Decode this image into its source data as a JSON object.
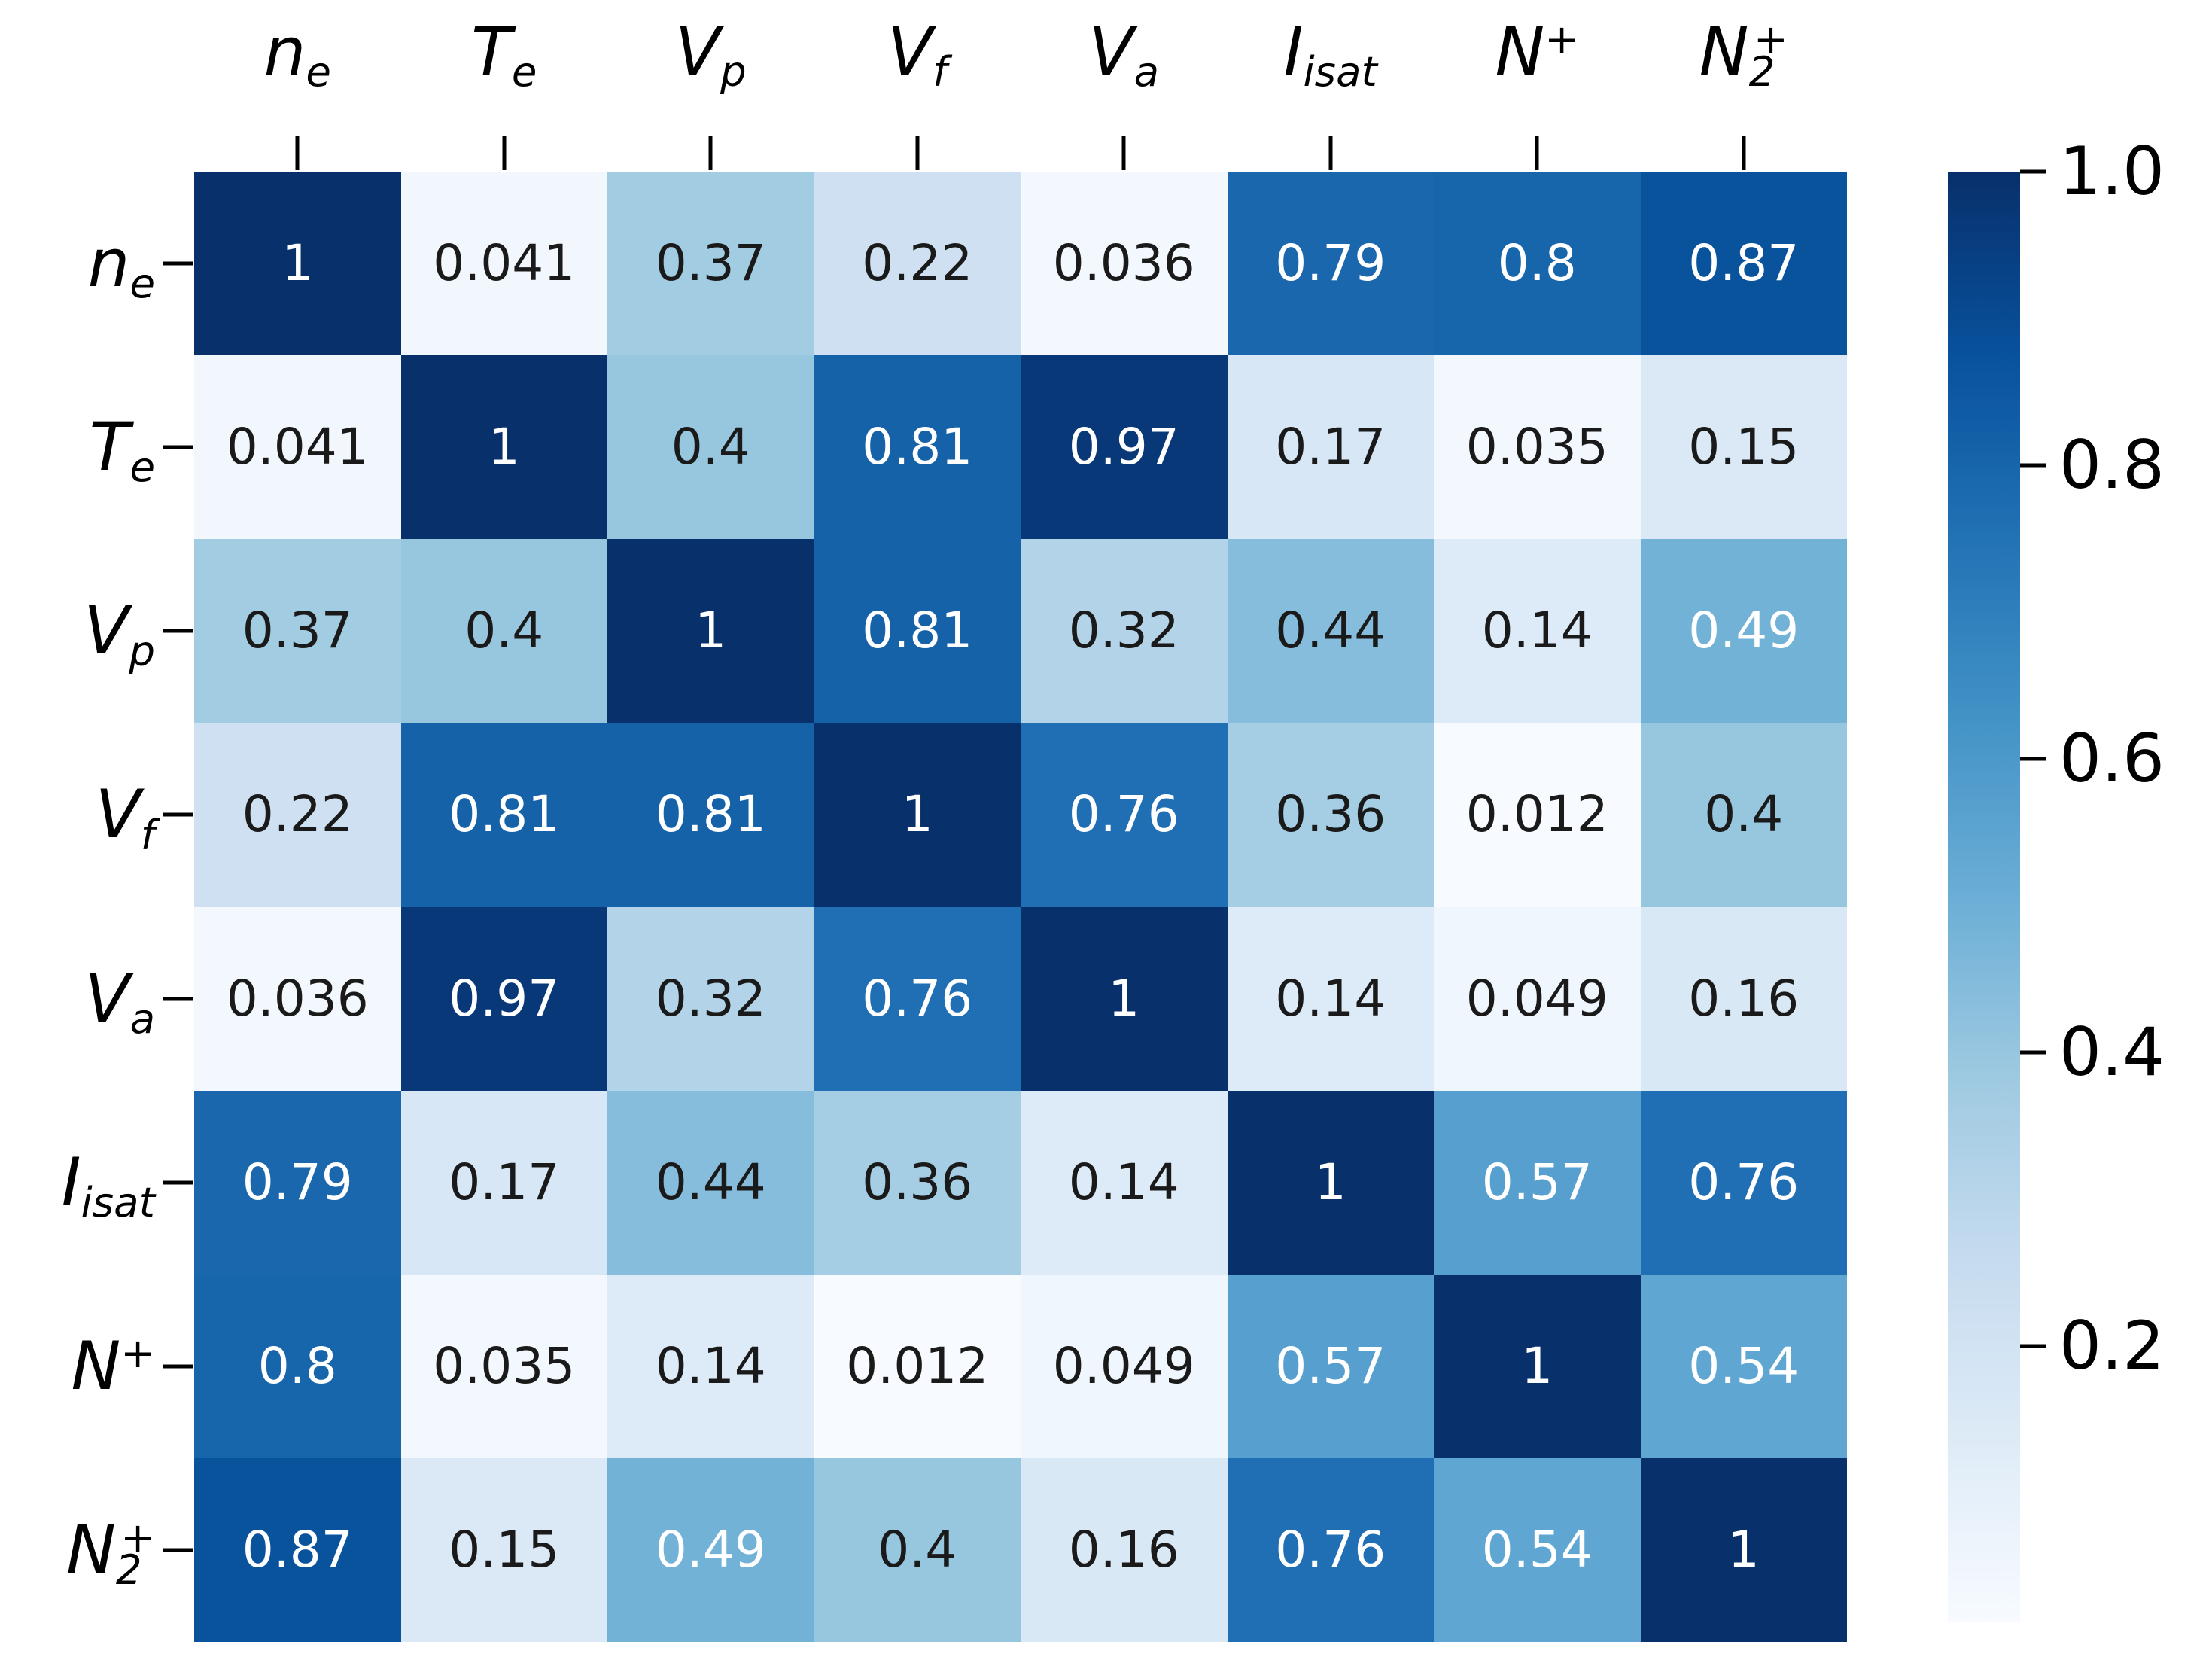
{
  "chart_data": {
    "type": "heatmap",
    "title": "",
    "subtitle": "",
    "description": "Correlation matrix heatmap of plasma diagnostic variables, Blues colormap, annotated values, colorbar on right",
    "variables_plain": [
      "n_e",
      "T_e",
      "V_p",
      "V_f",
      "V_a",
      "I_isat",
      "N+",
      "N2+"
    ],
    "label_parts": [
      {
        "base": "n",
        "sub": "e",
        "sup": ""
      },
      {
        "base": "T",
        "sub": "e",
        "sup": ""
      },
      {
        "base": "V",
        "sub": "p",
        "sup": ""
      },
      {
        "base": "V",
        "sub": "f",
        "sup": ""
      },
      {
        "base": "V",
        "sub": "a",
        "sup": ""
      },
      {
        "base": "I",
        "sub": "isat",
        "sup": ""
      },
      {
        "base": "N",
        "sub": "",
        "sup": "+"
      },
      {
        "base": "N",
        "sub": "2",
        "sup": "+"
      }
    ],
    "matrix_values": [
      [
        1,
        0.041,
        0.37,
        0.22,
        0.036,
        0.79,
        0.8,
        0.87
      ],
      [
        0.041,
        1,
        0.4,
        0.81,
        0.97,
        0.17,
        0.035,
        0.15
      ],
      [
        0.37,
        0.4,
        1,
        0.81,
        0.32,
        0.44,
        0.14,
        0.49
      ],
      [
        0.22,
        0.81,
        0.81,
        1,
        0.76,
        0.36,
        0.012,
        0.4
      ],
      [
        0.036,
        0.97,
        0.32,
        0.76,
        1,
        0.14,
        0.049,
        0.16
      ],
      [
        0.79,
        0.17,
        0.44,
        0.36,
        0.14,
        1,
        0.57,
        0.76
      ],
      [
        0.8,
        0.035,
        0.14,
        0.012,
        0.049,
        0.57,
        1,
        0.54
      ],
      [
        0.87,
        0.15,
        0.49,
        0.4,
        0.16,
        0.76,
        0.54,
        1
      ]
    ],
    "matrix_display": [
      [
        "1",
        "0.041",
        "0.37",
        "0.22",
        "0.036",
        "0.79",
        "0.8",
        "0.87"
      ],
      [
        "0.041",
        "1",
        "0.4",
        "0.81",
        "0.97",
        "0.17",
        "0.035",
        "0.15"
      ],
      [
        "0.37",
        "0.4",
        "1",
        "0.81",
        "0.32",
        "0.44",
        "0.14",
        "0.49"
      ],
      [
        "0.22",
        "0.81",
        "0.81",
        "1",
        "0.76",
        "0.36",
        "0.012",
        "0.4"
      ],
      [
        "0.036",
        "0.97",
        "0.32",
        "0.76",
        "1",
        "0.14",
        "0.049",
        "0.16"
      ],
      [
        "0.79",
        "0.17",
        "0.44",
        "0.36",
        "0.14",
        "1",
        "0.57",
        "0.76"
      ],
      [
        "0.8",
        "0.035",
        "0.14",
        "0.012",
        "0.049",
        "0.57",
        "1",
        "0.54"
      ],
      [
        "0.87",
        "0.15",
        "0.49",
        "0.4",
        "0.16",
        "0.76",
        "0.54",
        "1"
      ]
    ],
    "vmin": 0.012,
    "vmax": 1.0,
    "colormap": {
      "name": "Blues",
      "stops": [
        {
          "pos": 0.0,
          "color": "#f7fbff"
        },
        {
          "pos": 0.125,
          "color": "#deebf7"
        },
        {
          "pos": 0.25,
          "color": "#c6dbef"
        },
        {
          "pos": 0.375,
          "color": "#9ecae1"
        },
        {
          "pos": 0.5,
          "color": "#6baed6"
        },
        {
          "pos": 0.625,
          "color": "#4292c6"
        },
        {
          "pos": 0.75,
          "color": "#2171b5"
        },
        {
          "pos": 0.875,
          "color": "#08519c"
        },
        {
          "pos": 1.0,
          "color": "#08306b"
        }
      ]
    },
    "annotation_text_colors": {
      "light": "#ffffff",
      "dark": "#1a1a1a"
    },
    "white_text_threshold": 0.49,
    "colorbar_ticks": [
      "1.0",
      "0.8",
      "0.6",
      "0.4",
      "0.2"
    ],
    "colorbar_tick_values": [
      1.0,
      0.8,
      0.6,
      0.4,
      0.2
    ],
    "colorbar_position": "right",
    "grid": false,
    "background_color": "#ffffff",
    "tick_color": "#000000"
  }
}
